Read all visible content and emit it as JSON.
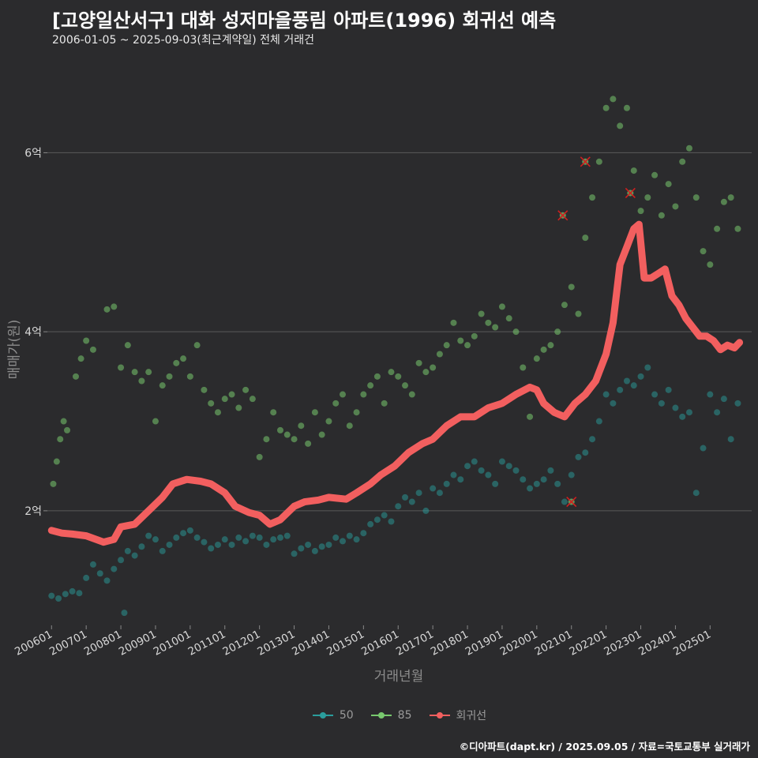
{
  "title": "[고양일산서구] 대화 성저마을풍림 아파트(1996) 회귀선 예측",
  "subtitle": "2006-01-05 ~ 2025-09-03(최근계약일) 전체 거래건",
  "caption": "©디아파트(dapt.kr) / 2025.09.05 / 자료=국토교통부 실거래가",
  "colors": {
    "background": "#2b2b2d",
    "grid": "#5a5a5a",
    "s50": "#2a9d9c",
    "s85": "#78c86e",
    "reg": "#f25f5f",
    "outlier": "#d11f1f"
  },
  "chart_data": {
    "type": "scatter",
    "xlabel": "거래년월",
    "ylabel": "매매가(원)",
    "x_range": [
      2005.88,
      2026.2
    ],
    "y_range": [
      0.72,
      6.93
    ],
    "y_unit": "억",
    "y_ticks": [
      {
        "value": 2,
        "label": "2억"
      },
      {
        "value": 4,
        "label": "4억"
      },
      {
        "value": 6,
        "label": "6억"
      }
    ],
    "x_ticks": [
      "200601",
      "200701",
      "200801",
      "200901",
      "201001",
      "201101",
      "201201",
      "201301",
      "201401",
      "201501",
      "201601",
      "201701",
      "201801",
      "201901",
      "202001",
      "202101",
      "202201",
      "202301",
      "202401",
      "202501"
    ],
    "legend": [
      {
        "name": "50",
        "color": "#2a9d9c"
      },
      {
        "name": "85",
        "color": "#78c86e"
      },
      {
        "name": "회귀선",
        "color": "#f25f5f"
      }
    ],
    "series": [
      {
        "name": "50",
        "points": [
          [
            2006.0,
            1.05
          ],
          [
            2006.2,
            1.02
          ],
          [
            2006.4,
            1.07
          ],
          [
            2006.6,
            1.1
          ],
          [
            2006.8,
            1.08
          ],
          [
            2007.0,
            1.25
          ],
          [
            2007.2,
            1.4
          ],
          [
            2007.4,
            1.3
          ],
          [
            2007.6,
            1.22
          ],
          [
            2007.8,
            1.35
          ],
          [
            2008.0,
            1.45
          ],
          [
            2008.2,
            1.55
          ],
          [
            2008.4,
            1.5
          ],
          [
            2008.6,
            1.6
          ],
          [
            2008.8,
            1.72
          ],
          [
            2008.1,
            0.86
          ],
          [
            2009.0,
            1.68
          ],
          [
            2009.2,
            1.55
          ],
          [
            2009.4,
            1.62
          ],
          [
            2009.6,
            1.7
          ],
          [
            2009.8,
            1.75
          ],
          [
            2010.0,
            1.78
          ],
          [
            2010.2,
            1.7
          ],
          [
            2010.4,
            1.65
          ],
          [
            2010.6,
            1.58
          ],
          [
            2010.8,
            1.62
          ],
          [
            2011.0,
            1.68
          ],
          [
            2011.2,
            1.62
          ],
          [
            2011.4,
            1.7
          ],
          [
            2011.6,
            1.66
          ],
          [
            2011.8,
            1.72
          ],
          [
            2012.0,
            1.7
          ],
          [
            2012.2,
            1.62
          ],
          [
            2012.4,
            1.68
          ],
          [
            2012.6,
            1.7
          ],
          [
            2012.8,
            1.72
          ],
          [
            2013.0,
            1.52
          ],
          [
            2013.2,
            1.58
          ],
          [
            2013.4,
            1.62
          ],
          [
            2013.6,
            1.55
          ],
          [
            2013.8,
            1.6
          ],
          [
            2014.0,
            1.62
          ],
          [
            2014.2,
            1.7
          ],
          [
            2014.4,
            1.66
          ],
          [
            2014.6,
            1.72
          ],
          [
            2014.8,
            1.68
          ],
          [
            2015.0,
            1.75
          ],
          [
            2015.2,
            1.85
          ],
          [
            2015.4,
            1.9
          ],
          [
            2015.6,
            1.95
          ],
          [
            2015.8,
            1.88
          ],
          [
            2016.0,
            2.05
          ],
          [
            2016.2,
            2.15
          ],
          [
            2016.4,
            2.1
          ],
          [
            2016.6,
            2.2
          ],
          [
            2016.8,
            2.0
          ],
          [
            2017.0,
            2.25
          ],
          [
            2017.2,
            2.2
          ],
          [
            2017.4,
            2.3
          ],
          [
            2017.6,
            2.4
          ],
          [
            2017.8,
            2.35
          ],
          [
            2018.0,
            2.5
          ],
          [
            2018.2,
            2.55
          ],
          [
            2018.4,
            2.45
          ],
          [
            2018.6,
            2.4
          ],
          [
            2018.8,
            2.3
          ],
          [
            2019.0,
            2.55
          ],
          [
            2019.2,
            2.5
          ],
          [
            2019.4,
            2.45
          ],
          [
            2019.6,
            2.35
          ],
          [
            2019.8,
            2.25
          ],
          [
            2020.0,
            2.3
          ],
          [
            2020.2,
            2.35
          ],
          [
            2020.4,
            2.45
          ],
          [
            2020.6,
            2.3
          ],
          [
            2020.8,
            2.1
          ],
          [
            2021.0,
            2.4
          ],
          [
            2021.2,
            2.6
          ],
          [
            2021.4,
            2.65
          ],
          [
            2021.6,
            2.8
          ],
          [
            2021.8,
            3.0
          ],
          [
            2022.0,
            3.3
          ],
          [
            2022.2,
            3.2
          ],
          [
            2022.4,
            3.35
          ],
          [
            2022.6,
            3.45
          ],
          [
            2022.8,
            3.4
          ],
          [
            2023.0,
            3.5
          ],
          [
            2023.2,
            3.6
          ],
          [
            2023.4,
            3.3
          ],
          [
            2023.6,
            3.2
          ],
          [
            2023.8,
            3.35
          ],
          [
            2024.0,
            3.15
          ],
          [
            2024.2,
            3.05
          ],
          [
            2024.4,
            3.1
          ],
          [
            2024.6,
            2.2
          ],
          [
            2024.8,
            2.7
          ],
          [
            2025.0,
            3.3
          ],
          [
            2025.2,
            3.1
          ],
          [
            2025.4,
            3.25
          ],
          [
            2025.6,
            2.8
          ],
          [
            2025.8,
            3.2
          ]
        ]
      },
      {
        "name": "85",
        "points": [
          [
            2006.05,
            2.3
          ],
          [
            2006.15,
            2.55
          ],
          [
            2006.25,
            2.8
          ],
          [
            2006.35,
            3.0
          ],
          [
            2006.45,
            2.9
          ],
          [
            2006.7,
            3.5
          ],
          [
            2006.85,
            3.7
          ],
          [
            2007.0,
            3.9
          ],
          [
            2007.2,
            3.8
          ],
          [
            2007.6,
            4.25
          ],
          [
            2007.8,
            4.28
          ],
          [
            2008.0,
            3.6
          ],
          [
            2008.2,
            3.85
          ],
          [
            2008.4,
            3.55
          ],
          [
            2008.6,
            3.45
          ],
          [
            2008.8,
            3.55
          ],
          [
            2009.0,
            3.0
          ],
          [
            2009.2,
            3.4
          ],
          [
            2009.4,
            3.5
          ],
          [
            2009.6,
            3.65
          ],
          [
            2009.8,
            3.7
          ],
          [
            2010.0,
            3.5
          ],
          [
            2010.2,
            3.85
          ],
          [
            2010.4,
            3.35
          ],
          [
            2010.6,
            3.2
          ],
          [
            2010.8,
            3.1
          ],
          [
            2011.0,
            3.25
          ],
          [
            2011.2,
            3.3
          ],
          [
            2011.4,
            3.15
          ],
          [
            2011.6,
            3.35
          ],
          [
            2011.8,
            3.25
          ],
          [
            2012.0,
            2.6
          ],
          [
            2012.2,
            2.8
          ],
          [
            2012.4,
            3.1
          ],
          [
            2012.6,
            2.9
          ],
          [
            2012.8,
            2.85
          ],
          [
            2013.0,
            2.8
          ],
          [
            2013.2,
            2.95
          ],
          [
            2013.4,
            2.75
          ],
          [
            2013.6,
            3.1
          ],
          [
            2013.8,
            2.85
          ],
          [
            2014.0,
            3.0
          ],
          [
            2014.2,
            3.2
          ],
          [
            2014.4,
            3.3
          ],
          [
            2014.6,
            2.95
          ],
          [
            2014.8,
            3.1
          ],
          [
            2015.0,
            3.3
          ],
          [
            2015.2,
            3.4
          ],
          [
            2015.4,
            3.5
          ],
          [
            2015.6,
            3.2
          ],
          [
            2015.8,
            3.55
          ],
          [
            2016.0,
            3.5
          ],
          [
            2016.2,
            3.4
          ],
          [
            2016.4,
            3.3
          ],
          [
            2016.6,
            3.65
          ],
          [
            2016.8,
            3.55
          ],
          [
            2017.0,
            3.6
          ],
          [
            2017.2,
            3.75
          ],
          [
            2017.4,
            3.85
          ],
          [
            2017.6,
            4.1
          ],
          [
            2017.8,
            3.9
          ],
          [
            2018.0,
            3.85
          ],
          [
            2018.2,
            3.95
          ],
          [
            2018.4,
            4.2
          ],
          [
            2018.6,
            4.1
          ],
          [
            2018.8,
            4.05
          ],
          [
            2019.0,
            4.28
          ],
          [
            2019.2,
            4.15
          ],
          [
            2019.4,
            4.0
          ],
          [
            2019.6,
            3.6
          ],
          [
            2019.8,
            3.05
          ],
          [
            2020.0,
            3.7
          ],
          [
            2020.2,
            3.8
          ],
          [
            2020.4,
            3.85
          ],
          [
            2020.6,
            4.0
          ],
          [
            2020.8,
            4.3
          ],
          [
            2021.0,
            4.5
          ],
          [
            2021.2,
            4.2
          ],
          [
            2021.4,
            5.05
          ],
          [
            2021.6,
            5.5
          ],
          [
            2021.8,
            5.9
          ],
          [
            2022.0,
            6.5
          ],
          [
            2022.2,
            6.6
          ],
          [
            2022.4,
            6.3
          ],
          [
            2022.6,
            6.5
          ],
          [
            2022.8,
            5.8
          ],
          [
            2023.0,
            5.35
          ],
          [
            2023.2,
            5.5
          ],
          [
            2023.4,
            5.75
          ],
          [
            2023.6,
            5.3
          ],
          [
            2023.8,
            5.65
          ],
          [
            2024.0,
            5.4
          ],
          [
            2024.2,
            5.9
          ],
          [
            2024.4,
            6.05
          ],
          [
            2024.6,
            5.5
          ],
          [
            2024.8,
            4.9
          ],
          [
            2025.0,
            4.75
          ],
          [
            2025.2,
            5.15
          ],
          [
            2025.4,
            5.45
          ],
          [
            2025.6,
            5.5
          ],
          [
            2025.8,
            5.15
          ]
        ]
      },
      {
        "name": "회귀선",
        "points": [
          [
            2006.0,
            1.78
          ],
          [
            2006.3,
            1.75
          ],
          [
            2006.6,
            1.74
          ],
          [
            2007.0,
            1.72
          ],
          [
            2007.5,
            1.65
          ],
          [
            2007.8,
            1.68
          ],
          [
            2008.0,
            1.82
          ],
          [
            2008.4,
            1.85
          ],
          [
            2008.8,
            2.0
          ],
          [
            2009.2,
            2.15
          ],
          [
            2009.5,
            2.3
          ],
          [
            2009.9,
            2.35
          ],
          [
            2010.3,
            2.33
          ],
          [
            2010.6,
            2.3
          ],
          [
            2011.0,
            2.2
          ],
          [
            2011.3,
            2.05
          ],
          [
            2011.7,
            1.98
          ],
          [
            2012.0,
            1.95
          ],
          [
            2012.3,
            1.85
          ],
          [
            2012.6,
            1.9
          ],
          [
            2013.0,
            2.05
          ],
          [
            2013.3,
            2.1
          ],
          [
            2013.7,
            2.12
          ],
          [
            2014.0,
            2.15
          ],
          [
            2014.5,
            2.13
          ],
          [
            2014.8,
            2.2
          ],
          [
            2015.2,
            2.3
          ],
          [
            2015.5,
            2.4
          ],
          [
            2015.9,
            2.5
          ],
          [
            2016.3,
            2.65
          ],
          [
            2016.7,
            2.75
          ],
          [
            2017.0,
            2.8
          ],
          [
            2017.4,
            2.95
          ],
          [
            2017.8,
            3.05
          ],
          [
            2018.2,
            3.05
          ],
          [
            2018.6,
            3.15
          ],
          [
            2019.0,
            3.2
          ],
          [
            2019.4,
            3.3
          ],
          [
            2019.8,
            3.38
          ],
          [
            2020.0,
            3.35
          ],
          [
            2020.2,
            3.2
          ],
          [
            2020.5,
            3.1
          ],
          [
            2020.8,
            3.05
          ],
          [
            2021.1,
            3.2
          ],
          [
            2021.4,
            3.3
          ],
          [
            2021.7,
            3.45
          ],
          [
            2022.0,
            3.75
          ],
          [
            2022.2,
            4.1
          ],
          [
            2022.4,
            4.75
          ],
          [
            2022.6,
            4.95
          ],
          [
            2022.8,
            5.15
          ],
          [
            2022.95,
            5.2
          ],
          [
            2023.1,
            4.6
          ],
          [
            2023.3,
            4.6
          ],
          [
            2023.5,
            4.65
          ],
          [
            2023.7,
            4.7
          ],
          [
            2023.9,
            4.4
          ],
          [
            2024.1,
            4.3
          ],
          [
            2024.3,
            4.15
          ],
          [
            2024.5,
            4.05
          ],
          [
            2024.7,
            3.95
          ],
          [
            2024.9,
            3.95
          ],
          [
            2025.1,
            3.9
          ],
          [
            2025.3,
            3.8
          ],
          [
            2025.5,
            3.85
          ],
          [
            2025.7,
            3.82
          ],
          [
            2025.85,
            3.88
          ]
        ]
      },
      {
        "name": "outliers",
        "points": [
          [
            2020.75,
            5.3
          ],
          [
            2021.4,
            5.9
          ],
          [
            2022.7,
            5.55
          ],
          [
            2021.0,
            2.1
          ]
        ]
      }
    ]
  }
}
